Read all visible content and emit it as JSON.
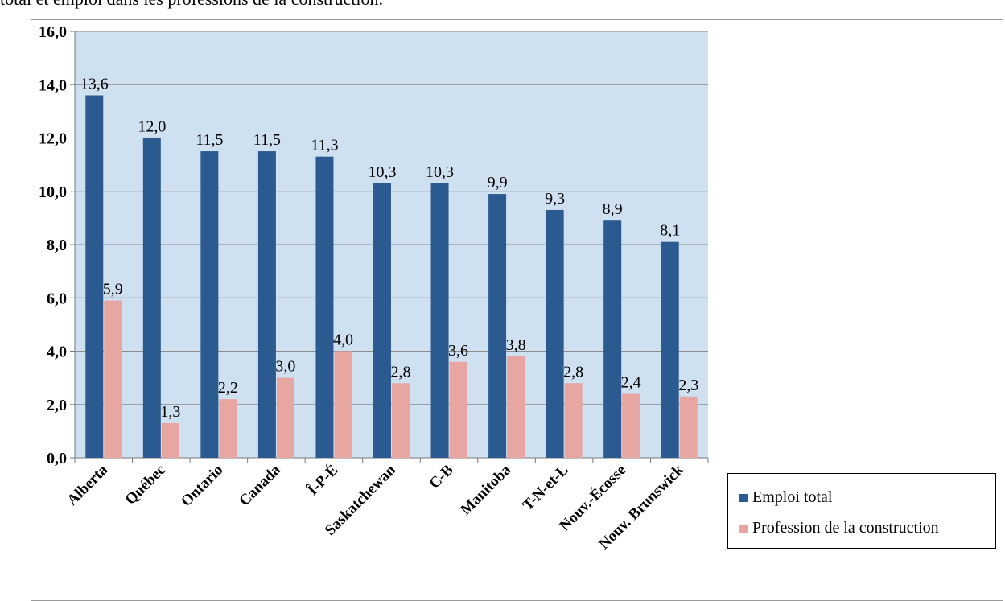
{
  "caption": "total et emploi dans les professions de la construction.",
  "colors": {
    "series1": "#2a5a8f",
    "series2": "#e8a6a2",
    "plot_bg": "#cfe0f1",
    "grid": "#8c8c8c"
  },
  "chart_data": {
    "type": "bar",
    "categories": [
      "Alberta",
      "Québec",
      "Ontario",
      "Canada",
      "Î-P-É",
      "Saskatchewan",
      "C-B",
      "Manitoba",
      "T-N-et-L",
      "Nouv.-Écosse",
      "Nouv. Brunswick"
    ],
    "series": [
      {
        "name": "Emploi total",
        "values": [
          13.6,
          12.0,
          11.5,
          11.5,
          11.3,
          10.3,
          10.3,
          9.9,
          9.3,
          8.9,
          8.1
        ],
        "labels": [
          "13,6",
          "12,0",
          "11,5",
          "11,5",
          "11,3",
          "10,3",
          "10,3",
          "9,9",
          "9,3",
          "8,9",
          "8,1"
        ]
      },
      {
        "name": "Profession de la construction",
        "values": [
          5.9,
          1.3,
          2.2,
          3.0,
          4.0,
          2.8,
          3.6,
          3.8,
          2.8,
          2.4,
          2.3
        ],
        "labels": [
          "5,9",
          "1,3",
          "2,2",
          "3,0",
          "4,0",
          "2,8",
          "3,6",
          "3,8",
          "2,8",
          "2,4",
          "2,3"
        ]
      }
    ],
    "yticks": [
      0,
      2,
      4,
      6,
      8,
      10,
      12,
      14,
      16
    ],
    "ytick_labels": [
      "0,0",
      "2,0",
      "4,0",
      "6,0",
      "8,0",
      "10,0",
      "12,0",
      "14,0",
      "16,0"
    ],
    "ylim": [
      0,
      16
    ],
    "grid": true,
    "legend_position": "bottom-right",
    "title": "",
    "xlabel": "",
    "ylabel": ""
  }
}
